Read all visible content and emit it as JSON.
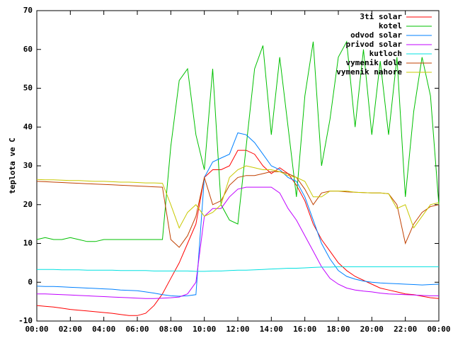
{
  "chart_data": {
    "type": "line",
    "ylabel": "teplota ve C",
    "x": [
      0,
      0.5,
      1,
      1.5,
      2,
      2.5,
      3,
      3.5,
      4,
      4.5,
      5,
      5.5,
      6,
      6.5,
      7,
      7.5,
      8,
      8.5,
      9,
      9.5,
      10,
      10.5,
      11,
      11.5,
      12,
      12.5,
      13,
      13.5,
      14,
      14.5,
      15,
      15.5,
      16,
      16.5,
      17,
      17.5,
      18,
      18.5,
      19,
      19.5,
      20,
      20.5,
      21,
      21.5,
      22,
      22.5,
      23,
      23.5,
      24
    ],
    "xlim": [
      0,
      24
    ],
    "xticks": [
      {
        "value": 0,
        "label": "00:00"
      },
      {
        "value": 2,
        "label": "02:00"
      },
      {
        "value": 4,
        "label": "04:00"
      },
      {
        "value": 6,
        "label": "06:00"
      },
      {
        "value": 8,
        "label": "08:00"
      },
      {
        "value": 10,
        "label": "10:00"
      },
      {
        "value": 12,
        "label": "12:00"
      },
      {
        "value": 14,
        "label": "14:00"
      },
      {
        "value": 16,
        "label": "16:00"
      },
      {
        "value": 18,
        "label": "18:00"
      },
      {
        "value": 20,
        "label": "20:00"
      },
      {
        "value": 22,
        "label": "22:00"
      },
      {
        "value": 24,
        "label": "00:00"
      }
    ],
    "ylim": [
      -10,
      70
    ],
    "yticks": [
      -10,
      0,
      10,
      20,
      30,
      40,
      50,
      60,
      70
    ],
    "grid": false,
    "legend": "top-right",
    "series": [
      {
        "name": "3ti solar",
        "color": "#ff0000",
        "values": [
          -6,
          -6.2,
          -6.4,
          -6.7,
          -7,
          -7.2,
          -7.4,
          -7.6,
          -7.8,
          -8,
          -8.3,
          -8.6,
          -8.6,
          -8,
          -6,
          -3,
          1,
          5,
          10,
          15,
          27,
          29,
          29,
          30,
          34,
          34,
          33,
          30,
          28,
          29.5,
          28,
          25,
          21,
          15,
          11,
          8,
          5,
          3,
          1.5,
          0.5,
          -0.5,
          -1.5,
          -2,
          -2.5,
          -3,
          -3.2,
          -3.6,
          -4,
          -4.2
        ]
      },
      {
        "name": "kotel",
        "color": "#00c000",
        "values": [
          11,
          11.5,
          11,
          11,
          11.5,
          11,
          10.5,
          10.5,
          11,
          11,
          11,
          11,
          11,
          11,
          11,
          11,
          35,
          52,
          55,
          38,
          29,
          55,
          20,
          16,
          15,
          35,
          55,
          61,
          38,
          58,
          40,
          22,
          48,
          62,
          30,
          42,
          58,
          62,
          40,
          60,
          38,
          57,
          38,
          58,
          22,
          44,
          58,
          48,
          20
        ]
      },
      {
        "name": "odvod solar",
        "color": "#0080ff",
        "values": [
          -1,
          -1.1,
          -1.1,
          -1.2,
          -1.3,
          -1.4,
          -1.5,
          -1.6,
          -1.7,
          -1.8,
          -2,
          -2.1,
          -2.2,
          -2.5,
          -2.8,
          -3.2,
          -3.5,
          -3.6,
          -3.5,
          -3.2,
          27,
          31,
          32,
          33,
          38.5,
          38,
          36,
          33,
          30,
          29,
          27,
          26,
          22,
          16,
          10,
          6,
          3,
          1.5,
          0.8,
          0.3,
          0,
          -0.2,
          -0.3,
          -0.4,
          -0.5,
          -0.6,
          -0.7,
          -0.6,
          -0.5
        ]
      },
      {
        "name": "privod solar",
        "color": "#c000ff",
        "values": [
          -3,
          -3,
          -3.1,
          -3.2,
          -3.3,
          -3.4,
          -3.5,
          -3.6,
          -3.7,
          -3.8,
          -3.9,
          -4,
          -4.1,
          -4.2,
          -4.2,
          -4.1,
          -4,
          -3.8,
          -3,
          0,
          17,
          19,
          19,
          22,
          24,
          24.5,
          24.5,
          24.5,
          24.5,
          23,
          19,
          16,
          12,
          8,
          4,
          1,
          -0.5,
          -1.5,
          -2,
          -2.3,
          -2.5,
          -2.8,
          -3,
          -3.1,
          -3.2,
          -3.3,
          -3.4,
          -3.5,
          -3.5
        ]
      },
      {
        "name": "kutloch",
        "color": "#00e0e0",
        "values": [
          3.3,
          3.3,
          3.3,
          3.2,
          3.2,
          3.2,
          3.1,
          3.1,
          3.1,
          3.1,
          3.0,
          3.0,
          3.0,
          3.0,
          2.9,
          2.9,
          2.9,
          2.9,
          2.9,
          2.8,
          2.8,
          2.9,
          2.9,
          3.0,
          3.1,
          3.1,
          3.2,
          3.3,
          3.4,
          3.5,
          3.6,
          3.6,
          3.7,
          3.8,
          3.9,
          3.9,
          4.0,
          4.0,
          4.0,
          4.0,
          4.0,
          4.0,
          4.0,
          4.0,
          4.0,
          4.0,
          4.0,
          4.0,
          4.0
        ]
      },
      {
        "name": "vymenik dole",
        "color": "#c04000",
        "values": [
          26,
          25.9,
          25.8,
          25.7,
          25.6,
          25.5,
          25.4,
          25.3,
          25.2,
          25.1,
          25,
          24.9,
          24.8,
          24.7,
          24.6,
          24.5,
          11,
          9,
          12,
          17,
          27,
          20,
          21,
          25,
          27,
          27.5,
          27.5,
          28,
          28.5,
          28.5,
          28,
          27,
          24,
          20,
          23,
          23.5,
          23.5,
          23.3,
          23.2,
          23.1,
          23,
          23,
          22.8,
          20,
          10,
          15,
          18,
          19.5,
          20
        ]
      },
      {
        "name": "vymenik nahore",
        "color": "#c8c800",
        "values": [
          26.5,
          26.4,
          26.4,
          26.3,
          26.2,
          26.2,
          26.1,
          26,
          26,
          25.9,
          25.8,
          25.8,
          25.7,
          25.6,
          25.6,
          25.5,
          20,
          14,
          18,
          20,
          17,
          18,
          20,
          27,
          29,
          30,
          29.5,
          29,
          29,
          28.5,
          27.5,
          27,
          26,
          22,
          22,
          23.5,
          23.5,
          23.5,
          23.2,
          23.1,
          23,
          23,
          22.8,
          19,
          20,
          14,
          17,
          20,
          20.5
        ]
      }
    ]
  }
}
